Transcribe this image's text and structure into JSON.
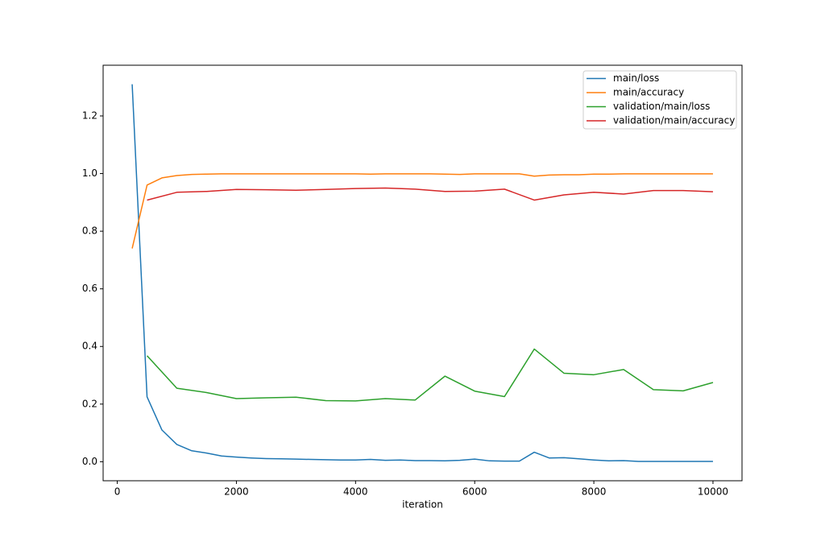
{
  "chart_data": {
    "type": "line",
    "xlabel": "iteration",
    "xlim": [
      -237.5,
      10487.5
    ],
    "xticks": [
      0,
      2000,
      4000,
      6000,
      8000,
      10000
    ],
    "ylim": [
      -0.066,
      1.376
    ],
    "yticks": [
      {
        "value": 0,
        "label": "0.0"
      },
      {
        "value": 0.2,
        "label": "0.2"
      },
      {
        "value": 0.4,
        "label": "0.4"
      },
      {
        "value": 0.6,
        "label": "0.6"
      },
      {
        "value": 0.8,
        "label": "0.8"
      },
      {
        "value": 1.0,
        "label": "1.0"
      },
      {
        "value": 1.2,
        "label": "1.2"
      }
    ],
    "legend": "upper right",
    "series": [
      {
        "name": "main/loss",
        "color": "#1f77b4",
        "x": [
          250,
          500,
          750,
          1000,
          1250,
          1500,
          1750,
          2000,
          2250,
          2500,
          2750,
          3000,
          3250,
          3500,
          3750,
          4000,
          4250,
          4500,
          4750,
          5000,
          5250,
          5500,
          5750,
          6000,
          6250,
          6500,
          6750,
          7000,
          7250,
          7500,
          7750,
          8000,
          8250,
          8500,
          8750,
          9000,
          9250,
          9500,
          9750,
          10000
        ],
        "values": [
          1.31,
          0.225,
          0.11,
          0.06,
          0.038,
          0.03,
          0.02,
          0.016,
          0.013,
          0.011,
          0.01,
          0.009,
          0.008,
          0.007,
          0.006,
          0.006,
          0.008,
          0.005,
          0.006,
          0.004,
          0.004,
          0.003,
          0.005,
          0.009,
          0.003,
          0.002,
          0.002,
          0.033,
          0.013,
          0.014,
          0.01,
          0.006,
          0.003,
          0.004,
          0.001,
          0.001,
          0.001,
          0.001,
          0.001,
          0.001
        ]
      },
      {
        "name": "main/accuracy",
        "color": "#ff7f0e",
        "x": [
          250,
          500,
          750,
          1000,
          1250,
          1500,
          1750,
          2000,
          2250,
          2500,
          2750,
          3000,
          3250,
          3500,
          3750,
          4000,
          4250,
          4500,
          4750,
          5000,
          5250,
          5500,
          5750,
          6000,
          6250,
          6500,
          6750,
          7000,
          7250,
          7500,
          7750,
          8000,
          8250,
          8500,
          8750,
          9000,
          9250,
          9500,
          9750,
          10000
        ],
        "values": [
          0.74,
          0.96,
          0.985,
          0.993,
          0.997,
          0.998,
          0.999,
          0.999,
          0.999,
          0.999,
          0.999,
          0.999,
          0.999,
          0.999,
          0.999,
          0.999,
          0.998,
          0.999,
          0.999,
          0.999,
          0.999,
          0.998,
          0.997,
          0.999,
          0.999,
          0.999,
          0.999,
          0.991,
          0.995,
          0.996,
          0.996,
          0.998,
          0.998,
          0.999,
          0.999,
          0.999,
          0.999,
          0.999,
          0.999,
          0.999
        ]
      },
      {
        "name": "validation/main/loss",
        "color": "#2ca02c",
        "x": [
          500,
          1000,
          1500,
          2000,
          2500,
          3000,
          3500,
          4000,
          4500,
          5000,
          5500,
          6000,
          6500,
          7000,
          7500,
          8000,
          8500,
          9000,
          9500,
          10000
        ],
        "values": [
          0.368,
          0.255,
          0.24,
          0.219,
          0.222,
          0.224,
          0.212,
          0.211,
          0.219,
          0.214,
          0.297,
          0.245,
          0.226,
          0.391,
          0.307,
          0.302,
          0.32,
          0.25,
          0.246,
          0.275
        ]
      },
      {
        "name": "validation/main/accuracy",
        "color": "#d62728",
        "x": [
          500,
          1000,
          1500,
          2000,
          2500,
          3000,
          3500,
          4000,
          4500,
          5000,
          5500,
          6000,
          6500,
          7000,
          7500,
          8000,
          8500,
          9000,
          9500,
          10000
        ],
        "values": [
          0.908,
          0.935,
          0.938,
          0.945,
          0.944,
          0.942,
          0.945,
          0.948,
          0.95,
          0.946,
          0.938,
          0.939,
          0.946,
          0.908,
          0.926,
          0.935,
          0.929,
          0.941,
          0.941,
          0.937
        ]
      }
    ]
  }
}
